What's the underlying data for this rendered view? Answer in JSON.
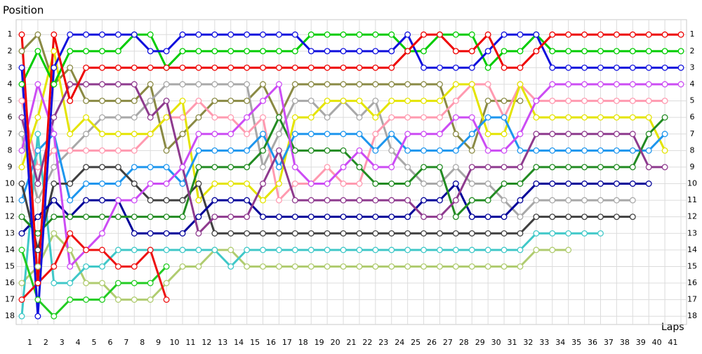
{
  "chart_data": {
    "type": "line",
    "y_title": "Position",
    "x_title": "Laps",
    "categories": [
      "1",
      "2",
      "3",
      "4",
      "5",
      "6",
      "7",
      "8",
      "9",
      "10",
      "11",
      "12",
      "13",
      "14",
      "15",
      "16",
      "17",
      "18",
      "19",
      "20",
      "21",
      "22",
      "23",
      "24",
      "25",
      "26",
      "27",
      "28",
      "29",
      "30",
      "31",
      "32",
      "33",
      "34",
      "35",
      "36",
      "37",
      "38",
      "39",
      "40",
      "41"
    ],
    "x": [
      0,
      1,
      2,
      3,
      4,
      5,
      6,
      7,
      8,
      9,
      10,
      11,
      12,
      13,
      14,
      15,
      16,
      17,
      18,
      19,
      20,
      21,
      22,
      23,
      24,
      25,
      26,
      27,
      28,
      29,
      30,
      31,
      32,
      33,
      34,
      35,
      36,
      37,
      38,
      39,
      40,
      41
    ],
    "xlim": [
      0,
      41
    ],
    "ylim": [
      18.5,
      0.1
    ],
    "yticks": [
      1,
      2,
      3,
      4,
      5,
      6,
      7,
      8,
      9,
      10,
      11,
      12,
      13,
      14,
      15,
      16,
      17,
      18
    ],
    "grid": true,
    "series": [
      {
        "color": "#8a8a44",
        "values": [
          2,
          1,
          4,
          3,
          5,
          5,
          5,
          5,
          4,
          8,
          7,
          6,
          5,
          5,
          5,
          4,
          6,
          4,
          4,
          4,
          4,
          4,
          4,
          4,
          4,
          4,
          4,
          7,
          8,
          5,
          5,
          5,
          null,
          null,
          null,
          null,
          null,
          null,
          null,
          null,
          null,
          null
        ]
      },
      {
        "color": "#a8a8a8",
        "values": [
          7,
          11,
          9,
          8,
          7,
          6,
          6,
          6,
          5,
          4,
          4,
          4,
          4,
          4,
          4,
          9,
          7,
          5,
          5,
          6,
          5,
          6,
          5,
          8,
          9,
          10,
          10,
          9,
          10,
          10,
          11,
          12,
          11,
          11,
          11,
          11,
          11,
          11,
          11,
          null,
          null,
          null
        ]
      },
      {
        "color": "#ff9ab0",
        "values": [
          5,
          9,
          8,
          8,
          8,
          8,
          8,
          8,
          7,
          6,
          6,
          5,
          6,
          6,
          7,
          6,
          11,
          10,
          10,
          9,
          10,
          10,
          7,
          6,
          6,
          6,
          6,
          5,
          4,
          4,
          6,
          4,
          5,
          5,
          5,
          5,
          5,
          5,
          5,
          5,
          5,
          null
        ]
      },
      {
        "color": "#e4e400",
        "values": [
          9,
          6,
          2,
          7,
          6,
          7,
          7,
          7,
          7,
          6,
          5,
          11,
          10,
          10,
          10,
          11,
          10,
          6,
          6,
          5,
          5,
          5,
          6,
          5,
          5,
          5,
          5,
          4,
          4,
          7,
          7,
          4,
          6,
          6,
          6,
          6,
          6,
          6,
          6,
          6,
          8,
          null
        ]
      },
      {
        "color": "#1e96ee",
        "values": [
          11,
          8,
          7,
          11,
          10,
          10,
          10,
          9,
          9,
          9,
          10,
          8,
          8,
          8,
          8,
          7,
          9,
          7,
          7,
          7,
          7,
          7,
          8,
          7,
          8,
          8,
          8,
          8,
          7,
          6,
          6,
          8,
          8,
          8,
          8,
          8,
          8,
          8,
          8,
          8,
          7,
          null
        ]
      },
      {
        "color": "#b0cc70",
        "values": [
          16,
          15,
          13,
          14,
          16,
          16,
          17,
          17,
          17,
          16,
          15,
          15,
          14,
          14,
          15,
          15,
          15,
          15,
          15,
          15,
          15,
          15,
          15,
          15,
          15,
          15,
          15,
          15,
          15,
          15,
          15,
          15,
          14,
          14,
          14,
          null,
          null,
          null,
          null,
          null,
          null,
          null
        ]
      },
      {
        "color": "#40c8c8",
        "values": [
          18,
          7,
          16,
          16,
          15,
          15,
          14,
          14,
          14,
          14,
          14,
          14,
          14,
          15,
          14,
          14,
          14,
          14,
          14,
          14,
          14,
          14,
          14,
          14,
          14,
          14,
          14,
          14,
          14,
          14,
          14,
          14,
          13,
          13,
          13,
          13,
          13,
          null,
          null,
          null,
          null,
          null
        ]
      },
      {
        "color": "#404040",
        "values": [
          10,
          14,
          10,
          10,
          9,
          9,
          9,
          10,
          11,
          11,
          11,
          10,
          13,
          13,
          13,
          13,
          13,
          13,
          13,
          13,
          13,
          13,
          13,
          13,
          13,
          13,
          13,
          13,
          13,
          13,
          13,
          13,
          12,
          12,
          12,
          12,
          12,
          12,
          12,
          null,
          null,
          null
        ]
      },
      {
        "color": "#000099",
        "values": [
          13,
          12,
          11,
          12,
          11,
          11,
          11,
          13,
          13,
          13,
          13,
          12,
          11,
          11,
          11,
          12,
          12,
          12,
          12,
          12,
          12,
          12,
          12,
          12,
          12,
          11,
          11,
          10,
          12,
          12,
          12,
          11,
          10,
          10,
          10,
          10,
          10,
          10,
          10,
          10,
          null,
          null
        ]
      },
      {
        "color": "#228b22",
        "values": [
          12,
          13,
          12,
          12,
          12,
          12,
          12,
          12,
          12,
          12,
          12,
          9,
          9,
          9,
          9,
          8,
          6,
          8,
          8,
          8,
          8,
          9,
          10,
          10,
          10,
          9,
          9,
          12,
          11,
          11,
          10,
          10,
          9,
          9,
          9,
          9,
          9,
          9,
          9,
          7,
          6,
          null
        ]
      },
      {
        "color": "#8e3a8e",
        "values": [
          6,
          10,
          6,
          4,
          4,
          4,
          4,
          4,
          6,
          5,
          9,
          13,
          12,
          12,
          12,
          10,
          8,
          11,
          11,
          11,
          11,
          11,
          11,
          11,
          11,
          12,
          12,
          11,
          9,
          9,
          9,
          9,
          7,
          7,
          7,
          7,
          7,
          7,
          7,
          9,
          9,
          null
        ]
      },
      {
        "color": "#cc4cf4",
        "values": [
          8,
          4,
          7,
          15,
          14,
          13,
          11,
          11,
          10,
          10,
          9,
          7,
          7,
          7,
          6,
          5,
          4,
          9,
          10,
          10,
          9,
          8,
          9,
          9,
          7,
          7,
          7,
          6,
          6,
          8,
          8,
          7,
          5,
          4,
          4,
          4,
          4,
          4,
          4,
          4,
          4,
          4
        ]
      },
      {
        "color": "#22cc22",
        "values": [
          14,
          17,
          18,
          17,
          17,
          17,
          16,
          16,
          16,
          15,
          null,
          null,
          null,
          null,
          null,
          null,
          null,
          null,
          null,
          null,
          null,
          null,
          null,
          null,
          null,
          null,
          null,
          null,
          null,
          null,
          null,
          null,
          null,
          null,
          null,
          null,
          null,
          null,
          null,
          null,
          null,
          null
        ]
      },
      {
        "color": "#ee1111",
        "values": [
          17,
          16,
          15,
          13,
          14,
          14,
          15,
          15,
          14,
          17,
          null,
          null,
          null,
          null,
          null,
          null,
          null,
          null,
          null,
          null,
          null,
          null,
          null,
          null,
          null,
          null,
          null,
          null,
          null,
          null,
          null,
          null,
          null,
          null,
          null,
          null,
          null,
          null,
          null,
          null,
          null,
          null
        ]
      },
      {
        "color": "#00cc00",
        "values": [
          4,
          2,
          4,
          2,
          2,
          2,
          2,
          1,
          1,
          3,
          2,
          2,
          2,
          2,
          2,
          2,
          2,
          2,
          1,
          1,
          1,
          1,
          1,
          1,
          2,
          2,
          1,
          1,
          1,
          3,
          2,
          2,
          1,
          2,
          2,
          2,
          2,
          2,
          2,
          2,
          2,
          2
        ]
      },
      {
        "color": "#1010dd",
        "values": [
          3,
          18,
          3,
          1,
          1,
          1,
          1,
          1,
          2,
          2,
          1,
          1,
          1,
          1,
          1,
          1,
          1,
          1,
          2,
          2,
          2,
          2,
          2,
          2,
          1,
          3,
          3,
          3,
          3,
          2,
          1,
          1,
          1,
          3,
          3,
          3,
          3,
          3,
          3,
          3,
          3,
          3
        ]
      },
      {
        "color": "#ee0000",
        "values": [
          1,
          16,
          1,
          5,
          3,
          3,
          3,
          3,
          3,
          3,
          3,
          3,
          3,
          3,
          3,
          3,
          3,
          3,
          3,
          3,
          3,
          3,
          3,
          3,
          2,
          1,
          1,
          2,
          2,
          1,
          3,
          3,
          2,
          1,
          1,
          1,
          1,
          1,
          1,
          1,
          1,
          1
        ]
      }
    ]
  }
}
